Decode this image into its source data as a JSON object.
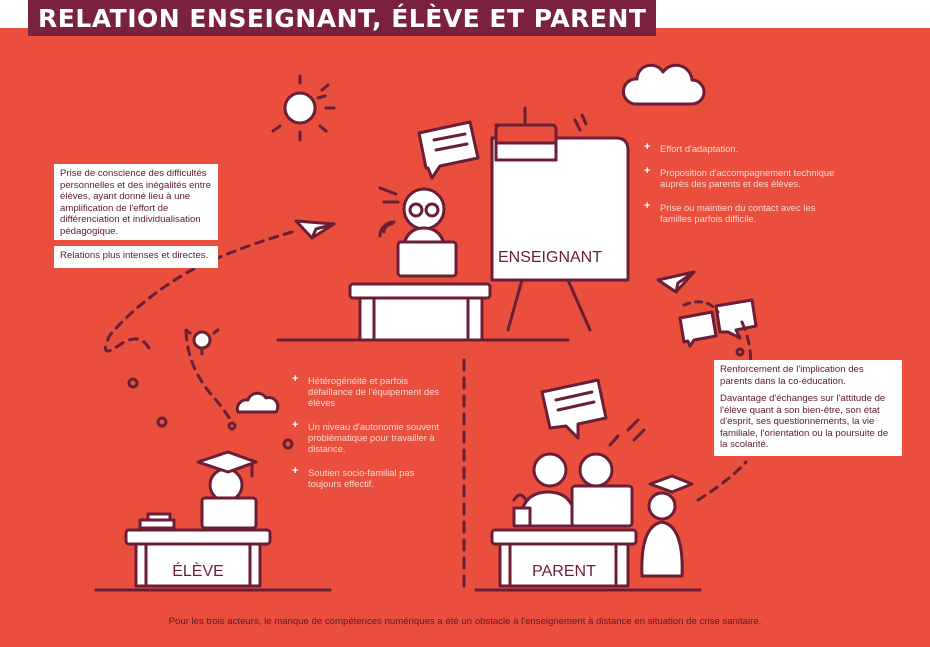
{
  "title": "RELATION ENSEIGNANT, ÉLÈVE ET PARENT",
  "teacher": {
    "label": "ENSEIGNANT",
    "bullets": [
      "Effort d'adaptation.",
      "Proposition d'accompagnement technique auprès des parents et des élèves.",
      "Prise ou maintien du contact avec les familles parfois difficile."
    ]
  },
  "student": {
    "label": "ÉLÈVE",
    "box_text_1": "Prise de conscience des difficultés personnelles et des inégalités entre élèves, ayant donné lieu à une amplification de l'effort de différenciation et individualisation pédagogique.",
    "box_text_2": "Relations plus intenses et directes.",
    "bullets": [
      "Hétérogénéité et parfois défaillance de l'équipement des élèves",
      "Un niveau d'autonomie souvent problématique pour travailler à distance.",
      "Soutien socio-familial pas toujours effectif."
    ]
  },
  "parent": {
    "label": "PARENT",
    "box_text_1": "Renforcement de l'implication des parents dans la co-éducation.",
    "box_text_2": "Davantage d'échanges sur l'attitude de l'élève quant à son bien-être, son état d'esprit, ses questionnements, la vie familiale, l'orientation ou la poursuite de la scolarité."
  },
  "footer": "Pour les trois acteurs, le manque de compétences numériques a été un obstacle à l'enseignement à distance en situation de crise sanitaire.",
  "colors": {
    "background": "#ea4e3c",
    "dark": "#7a2140",
    "white": "#ffffff",
    "text_dark": "#5b1a2e"
  },
  "icons": [
    "sun-icon",
    "cloud-icon",
    "paper-plane-icon",
    "lightbulb-icon",
    "speech-bubble-icon",
    "graduation-cap-icon",
    "laptop-icon",
    "robot-teacher-icon"
  ]
}
